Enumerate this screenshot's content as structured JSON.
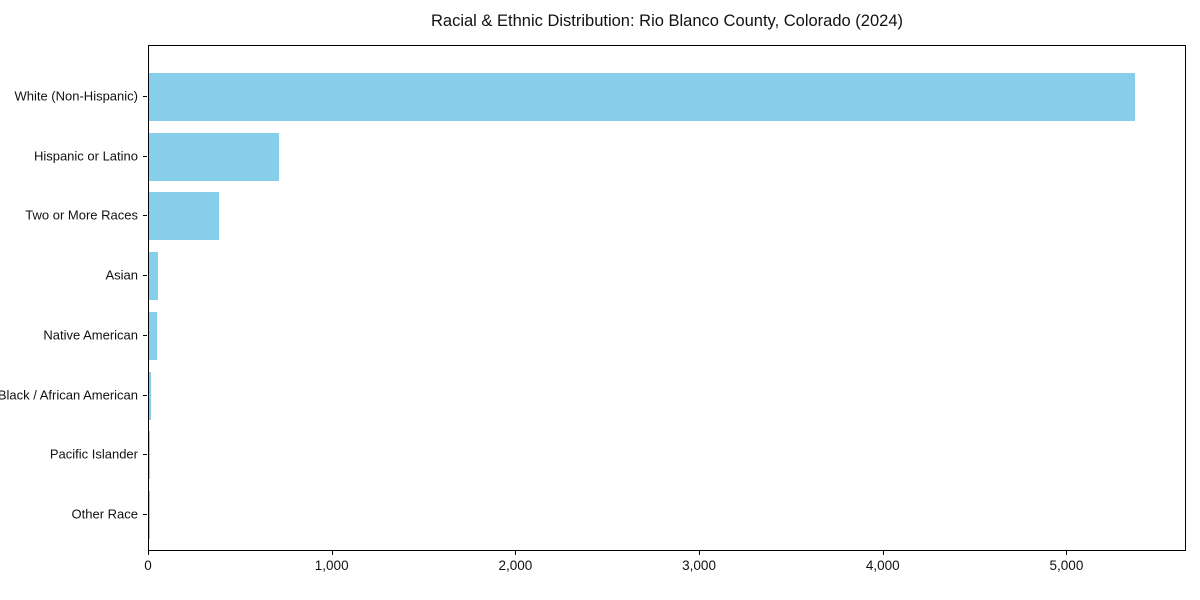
{
  "chart_data": {
    "type": "bar",
    "orientation": "horizontal",
    "title": "Racial & Ethnic Distribution: Rio Blanco County, Colorado (2024)",
    "categories": [
      "White (Non-Hispanic)",
      "Hispanic or Latino",
      "Two or More Races",
      "Asian",
      "Native American",
      "Black / African American",
      "Pacific Islander",
      "Other Race"
    ],
    "values": [
      5370,
      710,
      380,
      50,
      45,
      10,
      5,
      5
    ],
    "xlabel": "",
    "ylabel": "",
    "xlim": [
      0,
      5640
    ],
    "x_ticks": [
      0,
      1000,
      2000,
      3000,
      4000,
      5000
    ],
    "x_tick_labels": [
      "0",
      "1,000",
      "2,000",
      "3,000",
      "4,000",
      "5,000"
    ],
    "bar_color": "#87CEEB",
    "grid": false,
    "legend_position": "none",
    "background_color": "#ffffff",
    "text_color": "#111111"
  }
}
